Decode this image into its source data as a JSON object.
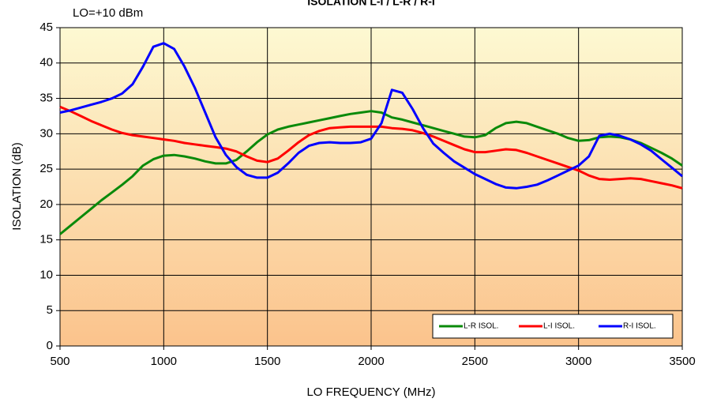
{
  "chart_data": {
    "type": "line",
    "title": "ISOLATION L-I / L-R / R-I",
    "annotation": "LO=+10 dBm",
    "xlabel": "LO FREQUENCY (MHz)",
    "ylabel": "ISOLATION (dB)",
    "x": [
      500,
      550,
      600,
      650,
      700,
      750,
      800,
      850,
      900,
      950,
      1000,
      1050,
      1100,
      1150,
      1200,
      1250,
      1300,
      1350,
      1400,
      1450,
      1500,
      1550,
      1600,
      1650,
      1700,
      1750,
      1800,
      1850,
      1900,
      1950,
      2000,
      2050,
      2100,
      2150,
      2200,
      2250,
      2300,
      2350,
      2400,
      2450,
      2500,
      2550,
      2600,
      2650,
      2700,
      2750,
      2800,
      2850,
      2900,
      2950,
      3000,
      3050,
      3100,
      3150,
      3200,
      3250,
      3300,
      3350,
      3400,
      3450,
      3500
    ],
    "series": [
      {
        "name": "L-R ISOL.",
        "color": "#0a8a0a",
        "values": [
          15.8,
          17,
          18.2,
          19.4,
          20.6,
          21.7,
          22.8,
          24,
          25.5,
          26.4,
          26.9,
          27,
          26.8,
          26.5,
          26.1,
          25.8,
          25.8,
          26.3,
          27.5,
          28.8,
          29.9,
          30.6,
          31,
          31.3,
          31.6,
          31.9,
          32.2,
          32.5,
          32.8,
          33,
          33.2,
          33,
          32.3,
          32,
          31.6,
          31.2,
          30.8,
          30.4,
          30,
          29.6,
          29.5,
          29.8,
          30.8,
          31.5,
          31.7,
          31.5,
          31,
          30.5,
          30,
          29.4,
          29,
          29.1,
          29.5,
          29.6,
          29.5,
          29.2,
          28.7,
          28,
          27.3,
          26.5,
          25.5
        ]
      },
      {
        "name": "L-I ISOL.",
        "color": "#ff0000",
        "values": [
          33.8,
          33.2,
          32.5,
          31.8,
          31.2,
          30.6,
          30.1,
          29.8,
          29.6,
          29.4,
          29.2,
          29,
          28.7,
          28.5,
          28.3,
          28.1,
          27.9,
          27.5,
          26.8,
          26.2,
          26,
          26.5,
          27.6,
          28.8,
          29.8,
          30.4,
          30.8,
          30.9,
          31,
          31,
          31,
          31,
          30.8,
          30.7,
          30.5,
          30.1,
          29.6,
          29,
          28.4,
          27.8,
          27.4,
          27.4,
          27.6,
          27.8,
          27.7,
          27.3,
          26.8,
          26.3,
          25.8,
          25.3,
          24.8,
          24.1,
          23.6,
          23.5,
          23.6,
          23.7,
          23.6,
          23.3,
          23,
          22.7,
          22.3
        ]
      },
      {
        "name": "R-I ISOL.",
        "color": "#0000ff",
        "values": [
          33,
          33.3,
          33.7,
          34.1,
          34.5,
          35,
          35.7,
          37,
          39.5,
          42.3,
          42.8,
          42,
          39.5,
          36.5,
          33,
          29.5,
          27,
          25.3,
          24.2,
          23.8,
          23.8,
          24.5,
          25.8,
          27.3,
          28.3,
          28.7,
          28.8,
          28.7,
          28.7,
          28.8,
          29.3,
          31.5,
          36.2,
          35.8,
          33.5,
          30.8,
          28.6,
          27.3,
          26.1,
          25.2,
          24.3,
          23.6,
          22.9,
          22.4,
          22.3,
          22.5,
          22.8,
          23.4,
          24.1,
          24.8,
          25.5,
          26.8,
          29.7,
          30,
          29.7,
          29.2,
          28.5,
          27.6,
          26.4,
          25.2,
          24
        ]
      }
    ],
    "xlim": [
      500,
      3500
    ],
    "xticks": [
      500,
      1000,
      1500,
      2000,
      2500,
      3000,
      3500
    ],
    "ylim": [
      0,
      45
    ],
    "yticks": [
      0,
      5,
      10,
      15,
      20,
      25,
      30,
      35,
      40,
      45
    ],
    "grid": true,
    "legend": "lower right"
  }
}
